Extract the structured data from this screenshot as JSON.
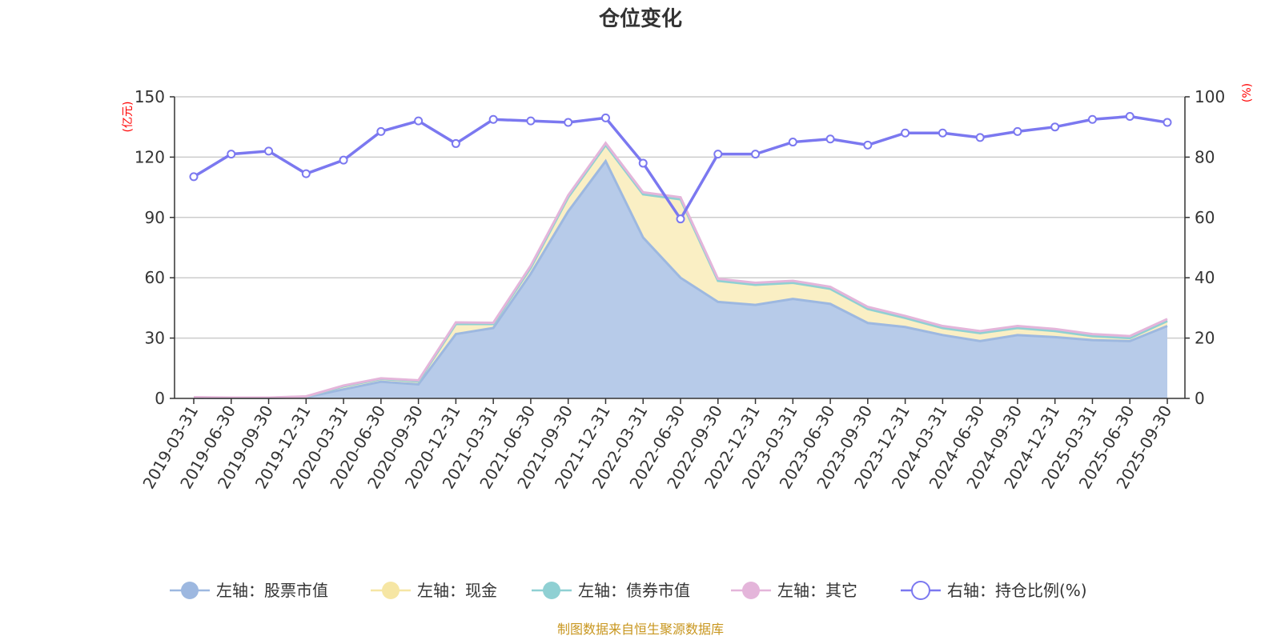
{
  "chart_data": {
    "type": "area",
    "title": "仓位变化",
    "left_axis_unit": "(亿元)",
    "right_axis_unit": "(%)",
    "left_ylim": [
      0,
      150
    ],
    "left_ticks": [
      "0",
      "30",
      "60",
      "90",
      "120",
      "150"
    ],
    "right_ylim": [
      0,
      100
    ],
    "right_ticks": [
      "0",
      "20",
      "40",
      "60",
      "80",
      "100"
    ],
    "categories": [
      "2019-03-31",
      "2019-06-30",
      "2019-09-30",
      "2019-12-31",
      "2020-03-31",
      "2020-06-30",
      "2020-09-30",
      "2020-12-31",
      "2021-03-31",
      "2021-06-30",
      "2021-09-30",
      "2021-12-31",
      "2022-03-31",
      "2022-06-30",
      "2022-09-30",
      "2022-12-31",
      "2023-03-31",
      "2023-06-30",
      "2023-09-30",
      "2023-12-31",
      "2024-03-31",
      "2024-06-30",
      "2024-09-30",
      "2024-12-31",
      "2025-03-31",
      "2025-06-30",
      "2025-09-30"
    ],
    "series": [
      {
        "name": "左轴：股票市值",
        "axis": "left",
        "kind": "stacked-area",
        "color": "#9db8e0",
        "fill": "#b7cbe9",
        "values": [
          0.3,
          0.2,
          0.2,
          0.6,
          4.5,
          8.3,
          7.0,
          32.0,
          35.0,
          62.0,
          93.0,
          118.0,
          80.0,
          60.0,
          48.0,
          46.5,
          49.5,
          47.0,
          37.5,
          35.5,
          31.5,
          28.5,
          31.5,
          30.5,
          29.0,
          28.5,
          36.0
        ]
      },
      {
        "name": "左轴：现金",
        "axis": "left",
        "kind": "stacked-area",
        "color": "#f6e6a4",
        "fill": "#faefc4",
        "values": [
          0.2,
          0.1,
          0.1,
          0.3,
          1.5,
          1.4,
          1.5,
          5.0,
          2.0,
          3.0,
          7.0,
          8.0,
          21.5,
          39.0,
          10.5,
          10.0,
          8.0,
          7.5,
          7.0,
          4.5,
          3.5,
          4.0,
          3.5,
          3.0,
          2.0,
          1.5,
          2.5
        ]
      },
      {
        "name": "左轴：债券市值",
        "axis": "left",
        "kind": "stacked-area",
        "color": "#8fd0d3",
        "fill": "#c4e8ea",
        "values": [
          0,
          0,
          0,
          0,
          0,
          0,
          0,
          0,
          0,
          0,
          0,
          0,
          0,
          0,
          0,
          0,
          0,
          0,
          0,
          0,
          0,
          0,
          0,
          0,
          0,
          0,
          0
        ]
      },
      {
        "name": "左轴：其它",
        "axis": "left",
        "kind": "stacked-area",
        "color": "#e4b5da",
        "fill": "#efd3ea",
        "values": [
          0.1,
          0.1,
          0.1,
          0.1,
          0.4,
          0.3,
          0.5,
          0.8,
          0.6,
          1.0,
          1.0,
          1.0,
          1.0,
          1.0,
          1.0,
          1.0,
          1.0,
          1.0,
          1.0,
          1.0,
          1.0,
          1.0,
          1.0,
          1.0,
          1.0,
          1.0,
          1.0
        ]
      },
      {
        "name": "右轴：持仓比例(%)",
        "axis": "right",
        "kind": "line",
        "color": "#7b78f0",
        "values": [
          73.5,
          81,
          82,
          74.5,
          79,
          88.5,
          92,
          84.5,
          92.5,
          92,
          91.5,
          93,
          78,
          59.5,
          81,
          81,
          85,
          86,
          84,
          88,
          88,
          86.5,
          88.5,
          90,
          92.5,
          93.5,
          91.5
        ]
      }
    ]
  },
  "source": "制图数据来自恒生聚源数据库"
}
